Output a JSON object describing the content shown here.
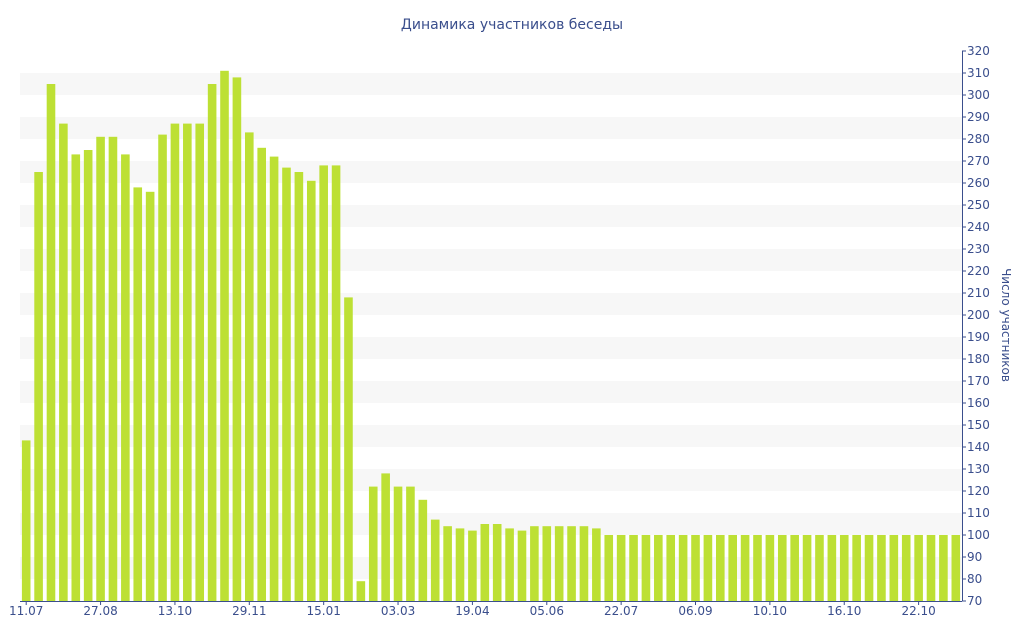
{
  "chart_data": {
    "type": "bar",
    "title": "Динамика участников беседы",
    "xlabel": "",
    "ylabel": "Число участников",
    "ylim": [
      70,
      320
    ],
    "y_ticks": [
      70,
      80,
      90,
      100,
      110,
      120,
      130,
      140,
      150,
      160,
      170,
      180,
      190,
      200,
      210,
      220,
      230,
      240,
      250,
      260,
      270,
      280,
      290,
      300,
      310,
      320
    ],
    "x_tick_labels": [
      "11.07",
      "27.08",
      "13.10",
      "29.11",
      "15.01",
      "03.03",
      "19.04",
      "05.06",
      "22.07",
      "06.09",
      "10.10",
      "16.10",
      "22.10"
    ],
    "x_tick_positions": [
      0,
      6,
      12,
      18,
      24,
      30,
      36,
      42,
      48,
      54,
      60,
      66,
      72
    ],
    "grid": "horizontal alternating bands",
    "y_axis_position": "right",
    "colors": {
      "bar": "#bde034",
      "band": "#f7f7f7",
      "text": "#3a4e8c",
      "axis": "#3a4e8c"
    },
    "values": [
      143,
      265,
      305,
      287,
      273,
      275,
      281,
      281,
      273,
      258,
      256,
      282,
      287,
      287,
      287,
      305,
      311,
      308,
      283,
      276,
      272,
      267,
      265,
      261,
      268,
      268,
      208,
      79,
      122,
      128,
      122,
      122,
      116,
      107,
      104,
      103,
      102,
      105,
      105,
      103,
      102,
      104,
      104,
      104,
      104,
      104,
      103,
      100,
      100,
      100,
      100,
      100,
      100,
      100,
      100,
      100,
      100,
      100,
      100,
      100,
      100,
      100,
      100,
      100,
      100,
      100,
      100,
      100,
      100,
      100,
      100,
      100,
      100,
      100,
      100,
      100
    ]
  }
}
